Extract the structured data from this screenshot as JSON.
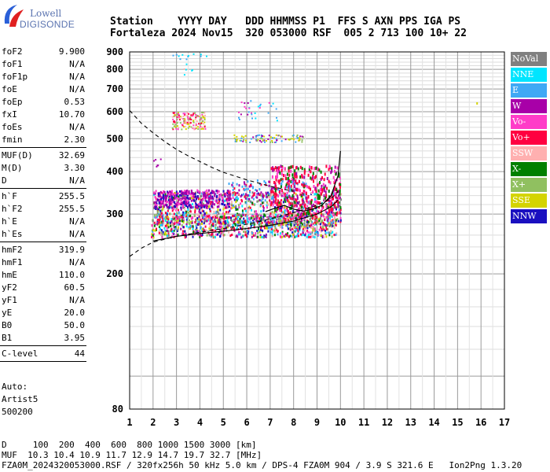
{
  "logo": {
    "line1": "Lowell",
    "line2": "DIGISONDE"
  },
  "header": {
    "labels": "Station    YYYY DAY   DDD HHMMSS P1  FFS S AXN PPS IGA PS",
    "values": "Fortaleza 2024 Nov15  320 053000 RSF  005 2 713 100 10+ 22"
  },
  "params": {
    "group1": [
      {
        "k": "foF2",
        "v": "9.900"
      },
      {
        "k": "foF1",
        "v": "N/A"
      },
      {
        "k": "foF1p",
        "v": "N/A"
      },
      {
        "k": "foE",
        "v": "N/A"
      },
      {
        "k": "foEp",
        "v": "0.53"
      },
      {
        "k": "fxI",
        "v": "10.70"
      },
      {
        "k": "foEs",
        "v": "N/A"
      },
      {
        "k": "fmin",
        "v": "2.30"
      }
    ],
    "group2": [
      {
        "k": "MUF(D)",
        "v": "32.69"
      },
      {
        "k": "M(D)",
        "v": "3.30"
      },
      {
        "k": "D",
        "v": "N/A"
      }
    ],
    "group3": [
      {
        "k": "h`F",
        "v": "255.5"
      },
      {
        "k": "h`F2",
        "v": "255.5"
      },
      {
        "k": "h`E",
        "v": "N/A"
      },
      {
        "k": "h`Es",
        "v": "N/A"
      }
    ],
    "group4": [
      {
        "k": "hmF2",
        "v": "319.9"
      },
      {
        "k": "hmF1",
        "v": "N/A"
      },
      {
        "k": "hmE",
        "v": "110.0"
      },
      {
        "k": "yF2",
        "v": "60.5"
      },
      {
        "k": "yF1",
        "v": "N/A"
      },
      {
        "k": "yE",
        "v": "20.0"
      },
      {
        "k": "B0",
        "v": "50.0"
      },
      {
        "k": "B1",
        "v": "3.95"
      }
    ],
    "group5": [
      {
        "k": "C-level",
        "v": "44"
      }
    ]
  },
  "auto": {
    "line1": "Auto:",
    "line2": "Artist5",
    "line3": "500200"
  },
  "legend": [
    {
      "label": "NoVal",
      "color": "#808080"
    },
    {
      "label": "NNE",
      "color": "#00e5ff"
    },
    {
      "label": "E",
      "color": "#3fa9f5"
    },
    {
      "label": "W",
      "color": "#a800a8"
    },
    {
      "label": "Vo-",
      "color": "#ff3cc8"
    },
    {
      "label": "Vo+",
      "color": "#ff0040"
    },
    {
      "label": "SSW",
      "color": "#ffb0b0"
    },
    {
      "label": "X-",
      "color": "#008000"
    },
    {
      "label": "X+",
      "color": "#90c060"
    },
    {
      "label": "SSE",
      "color": "#d4d400"
    },
    {
      "label": "NNW",
      "color": "#1a10c0"
    }
  ],
  "footer": {
    "line1": "D     100  200  400  600  800 1000 1500 3000 [km]",
    "line2": "MUF  10.3 10.4 10.9 11.7 12.9 14.7 19.7 32.7 [MHz]",
    "line3": "FZA0M_2024320053000.RSF / 320fx256h 50 kHz 5.0 km / DPS-4 FZA0M 904 / 3.9 S 321.6 E   Ion2Png 1.3.20"
  },
  "chart_data": {
    "type": "scatter",
    "xlim": [
      1,
      17
    ],
    "ylim": [
      80,
      900
    ],
    "y_scale": "log",
    "xticks": [
      1,
      2,
      3,
      4,
      5,
      6,
      7,
      8,
      9,
      10,
      11,
      12,
      13,
      14,
      15,
      16,
      17
    ],
    "yticks": [
      80,
      200,
      300,
      400,
      500,
      600,
      700,
      800,
      900
    ],
    "grid": true,
    "clusters": [
      {
        "name": "o-trace low",
        "x": [
          1.9,
          9.7
        ],
        "y": [
          258,
          300
        ]
      },
      {
        "name": "o-trace mid",
        "x": [
          2.0,
          10.0
        ],
        "y": [
          280,
          350
        ]
      },
      {
        "name": "W echoes",
        "x": [
          2.0,
          5.3
        ],
        "y": [
          315,
          355
        ]
      },
      {
        "name": "second hop",
        "x": [
          2.8,
          4.2
        ],
        "y": [
          535,
          600
        ]
      },
      {
        "name": "second hop mid",
        "x": [
          5.4,
          8.4
        ],
        "y": [
          490,
          515
        ]
      }
    ],
    "curves": [
      {
        "name": "profile-dashed-lower",
        "style": "dashed",
        "x": [
          1.0,
          1.5,
          2.0,
          3.0,
          4.0,
          5.0,
          6.0,
          7.0,
          8.0,
          9.0,
          9.6,
          9.9
        ],
        "y": [
          225,
          238,
          248,
          258,
          265,
          272,
          280,
          290,
          303,
          318,
          333,
          350
        ]
      },
      {
        "name": "profile-dashed-upper",
        "style": "dashed",
        "x": [
          1.0,
          1.5,
          2.0,
          2.5,
          3.0,
          3.5,
          4.0,
          4.5,
          5.0,
          5.5,
          6.0,
          6.5,
          7.0,
          7.5,
          8.0
        ],
        "y": [
          605,
          555,
          520,
          490,
          465,
          445,
          428,
          412,
          398,
          388,
          378,
          370,
          362,
          356,
          350
        ]
      },
      {
        "name": "profile-solid",
        "style": "solid",
        "x": [
          2.0,
          3.0,
          4.0,
          5.0,
          6.0,
          7.0,
          8.0,
          9.0,
          9.6,
          9.9
        ],
        "y": [
          250,
          258,
          263,
          267,
          272,
          278,
          286,
          300,
          315,
          330
        ]
      },
      {
        "name": "ordinary-trace-line",
        "style": "solid",
        "x": [
          6.8,
          7.2,
          7.6,
          8.0,
          8.4,
          8.8,
          9.2,
          9.6,
          9.9,
          10.0
        ],
        "y": [
          305,
          312,
          318,
          310,
          306,
          310,
          318,
          340,
          390,
          460
        ]
      }
    ]
  }
}
